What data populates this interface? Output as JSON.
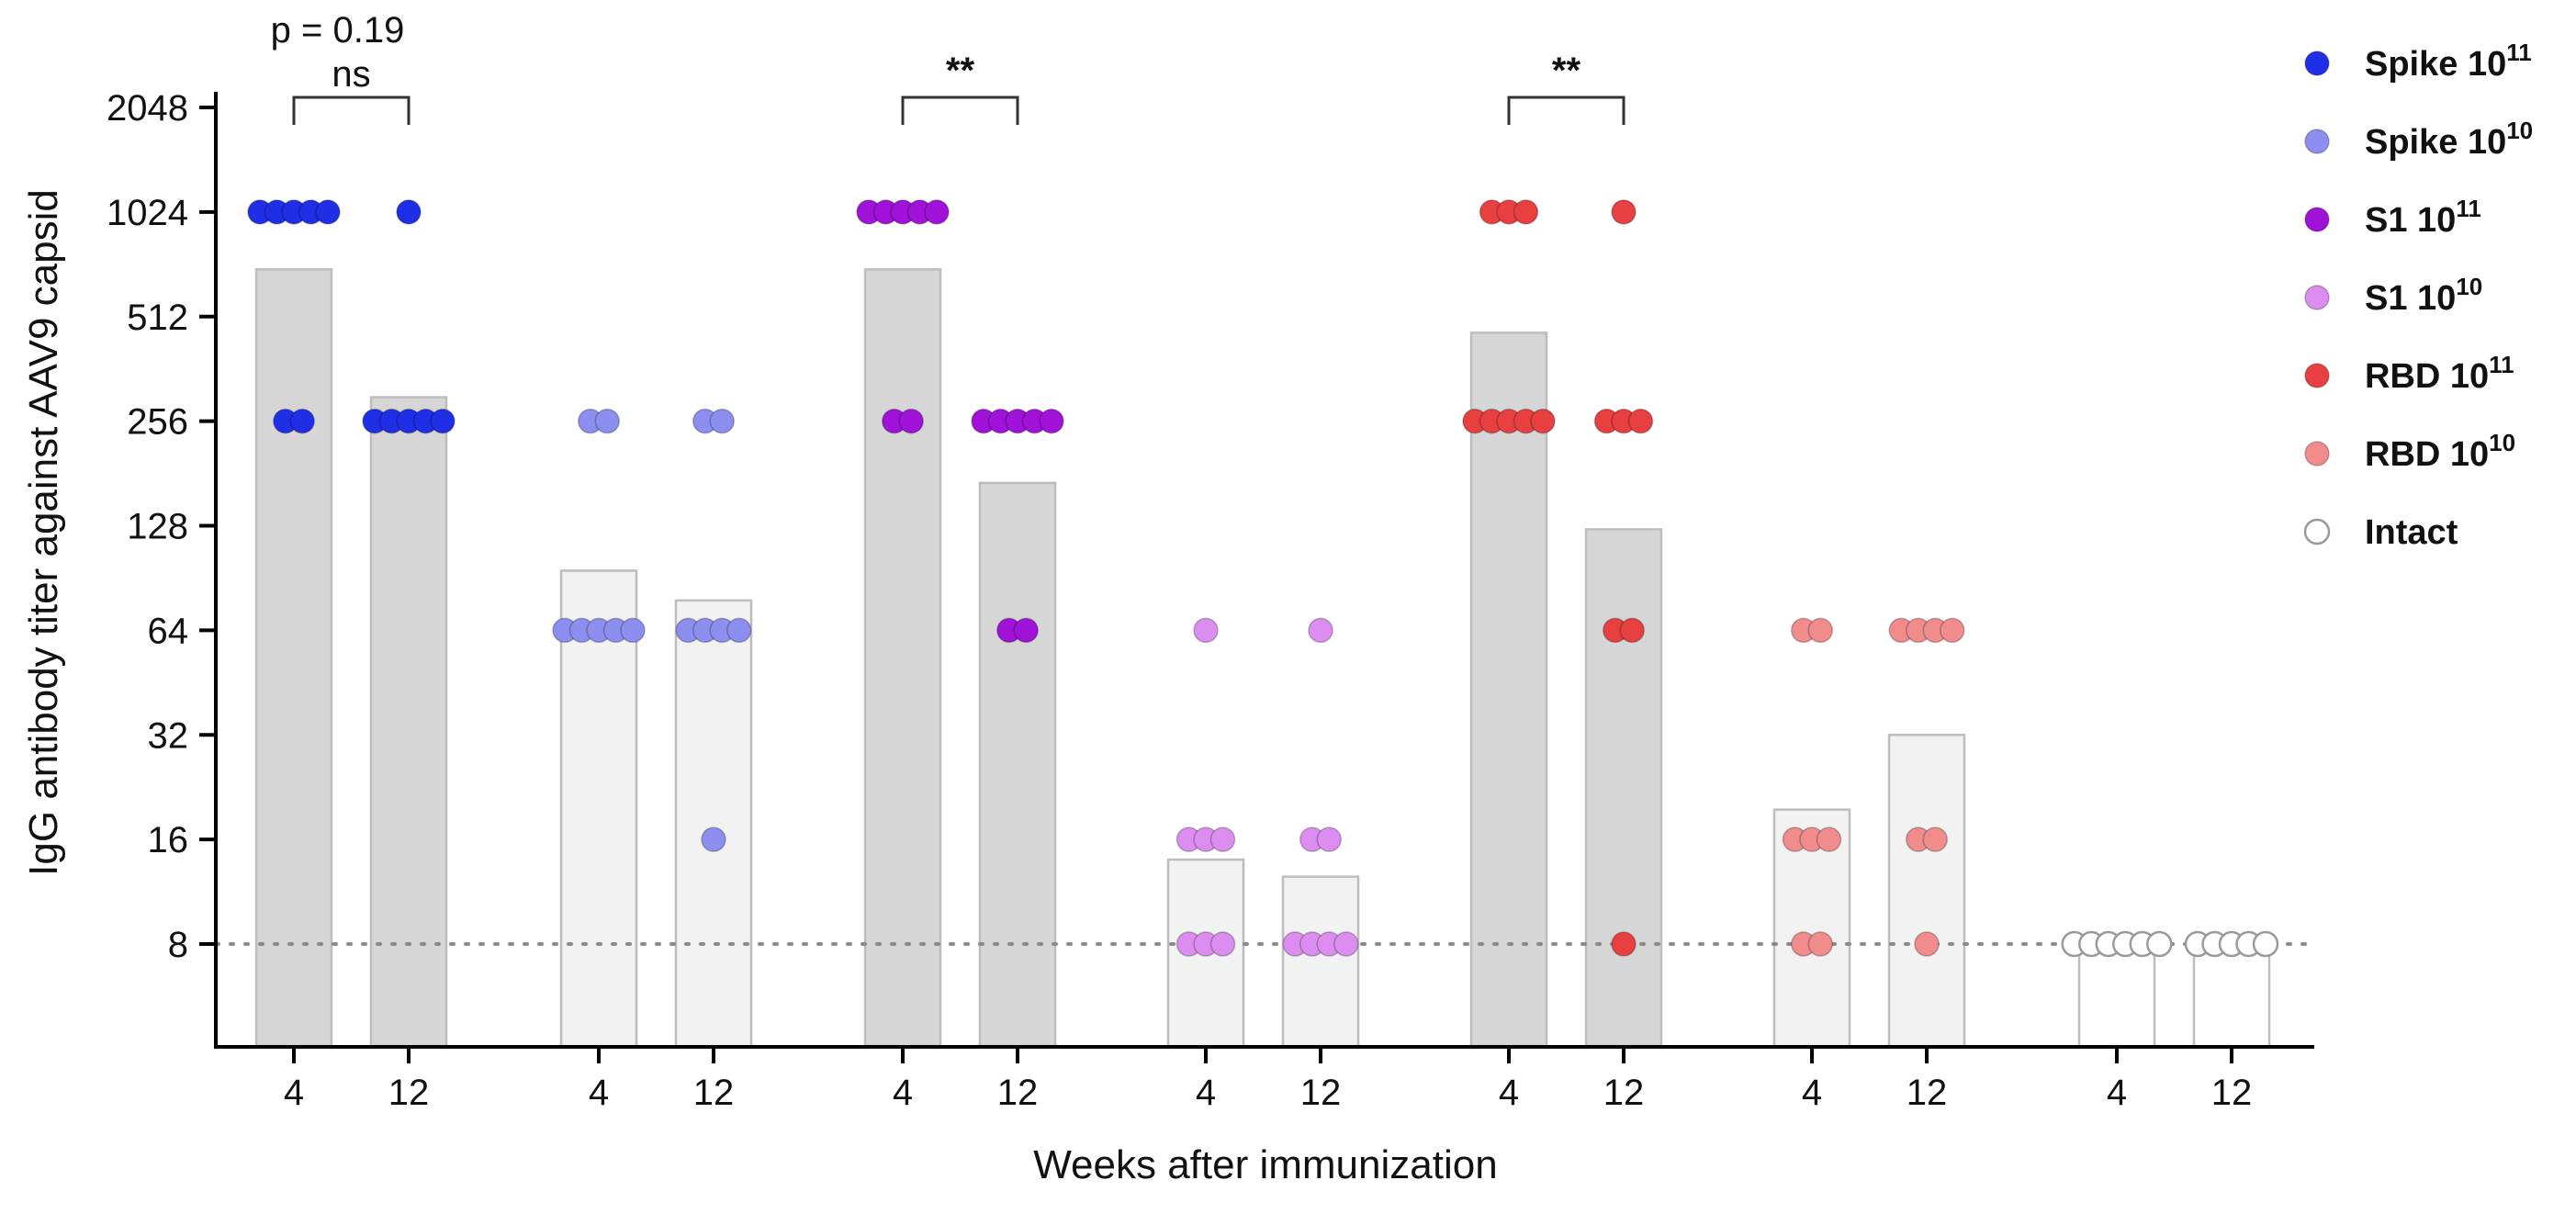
{
  "chart_data": {
    "type": "bar",
    "title": "",
    "ylabel": "IgG antibody titer against AAV9 capsid",
    "xlabel": "Weeks after immunization",
    "yscale": "log2",
    "ylim": [
      4,
      2048
    ],
    "yticks": [
      8,
      16,
      32,
      64,
      128,
      256,
      512,
      1024,
      2048
    ],
    "ytick_labels": [
      "8",
      "16",
      "32",
      "64",
      "128",
      "256",
      "512",
      "1024",
      "2048"
    ],
    "detection_limit": 8,
    "groups": [
      {
        "name": "Spike",
        "exponent": "11",
        "color": "#1f2fe6",
        "bar_fill": "#d6d6d6",
        "bars": [
          {
            "week": "4",
            "mean": 700,
            "points": [
              1024,
              1024,
              1024,
              1024,
              1024,
              256,
              256
            ]
          },
          {
            "week": "12",
            "mean": 300,
            "points": [
              1024,
              256,
              256,
              256,
              256,
              256
            ]
          }
        ]
      },
      {
        "name": "Spike",
        "exponent": "10",
        "color": "#8c8ef0",
        "bar_fill": "#f2f2f2",
        "bars": [
          {
            "week": "4",
            "mean": 95,
            "points": [
              256,
              256,
              64,
              64,
              64,
              64,
              64
            ]
          },
          {
            "week": "12",
            "mean": 78,
            "points": [
              256,
              256,
              64,
              64,
              64,
              64,
              16
            ]
          }
        ]
      },
      {
        "name": "S1",
        "exponent": "11",
        "color": "#a012d8",
        "bar_fill": "#d6d6d6",
        "bars": [
          {
            "week": "4",
            "mean": 700,
            "points": [
              1024,
              1024,
              1024,
              1024,
              1024,
              256,
              256
            ]
          },
          {
            "week": "12",
            "mean": 170,
            "points": [
              256,
              256,
              256,
              256,
              256,
              64,
              64
            ]
          }
        ]
      },
      {
        "name": "S1",
        "exponent": "10",
        "color": "#dc8ef0",
        "bar_fill": "#f2f2f2",
        "bars": [
          {
            "week": "4",
            "mean": 14,
            "points": [
              64,
              16,
              16,
              16,
              8,
              8,
              8
            ]
          },
          {
            "week": "12",
            "mean": 12.5,
            "points": [
              64,
              16,
              16,
              8,
              8,
              8,
              8
            ]
          }
        ]
      },
      {
        "name": "RBD",
        "exponent": "11",
        "color": "#e84040",
        "bar_fill": "#d6d6d6",
        "bars": [
          {
            "week": "4",
            "mean": 460,
            "points": [
              1024,
              1024,
              1024,
              256,
              256,
              256,
              256,
              256
            ]
          },
          {
            "week": "12",
            "mean": 125,
            "points": [
              1024,
              256,
              256,
              256,
              64,
              64,
              8
            ]
          }
        ]
      },
      {
        "name": "RBD",
        "exponent": "10",
        "color": "#f08c8c",
        "bar_fill": "#f2f2f2",
        "bars": [
          {
            "week": "4",
            "mean": 19.5,
            "points": [
              64,
              64,
              16,
              16,
              16,
              8,
              8
            ]
          },
          {
            "week": "12",
            "mean": 32,
            "points": [
              64,
              64,
              64,
              64,
              16,
              16,
              8
            ]
          }
        ]
      },
      {
        "name": "Intact",
        "exponent": "",
        "color": "#ffffff",
        "bar_fill": "#ffffff",
        "bars": [
          {
            "week": "4",
            "mean": 8,
            "points": [
              8,
              8,
              8,
              8,
              8,
              8
            ]
          },
          {
            "week": "12",
            "mean": 8,
            "points": [
              8,
              8,
              8,
              8,
              8
            ]
          }
        ]
      }
    ],
    "significance": [
      {
        "group": 0,
        "label": "ns",
        "pvalue_text": "p = 0.19"
      },
      {
        "group": 2,
        "label": "**",
        "pvalue_text": ""
      },
      {
        "group": 4,
        "label": "**",
        "pvalue_text": ""
      }
    ],
    "legend": [
      {
        "base": "Spike 10",
        "exponent": "11",
        "color": "#1f2fe6"
      },
      {
        "base": "Spike 10",
        "exponent": "10",
        "color": "#8c8ef0"
      },
      {
        "base": "S1 10",
        "exponent": "11",
        "color": "#a012d8"
      },
      {
        "base": "S1 10",
        "exponent": "10",
        "color": "#dc8ef0"
      },
      {
        "base": "RBD 10",
        "exponent": "11",
        "color": "#e84040"
      },
      {
        "base": "RBD 10",
        "exponent": "10",
        "color": "#f08c8c"
      },
      {
        "base": "Intact",
        "exponent": "",
        "color": "#ffffff"
      }
    ]
  }
}
